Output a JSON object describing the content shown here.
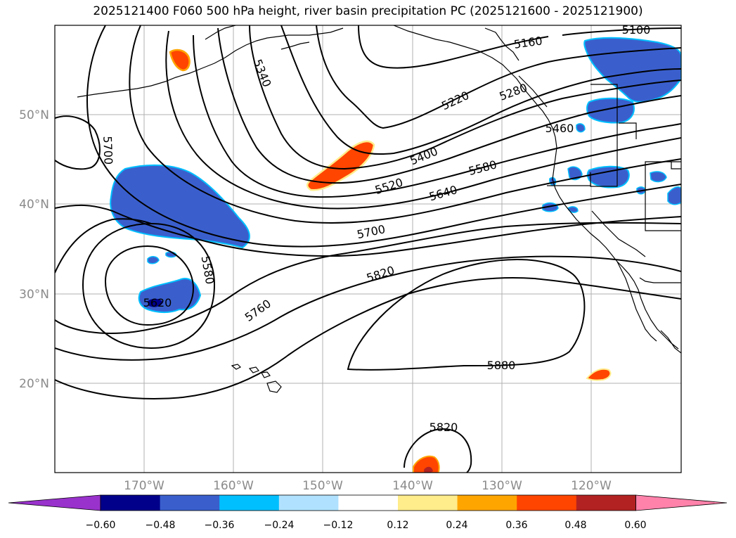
{
  "title": "2025121400 F060 500 hPa height, river basin precipitation PC (2025121600 - 2025121900)",
  "lat_labels": [
    "50°N",
    "40°N",
    "30°N",
    "20°N"
  ],
  "lon_labels": [
    "170°W",
    "160°W",
    "150°W",
    "140°W",
    "130°W",
    "120°W"
  ],
  "contour_labels": [
    "5100",
    "5160",
    "5220",
    "5280",
    "5340",
    "5400",
    "5460",
    "5520",
    "5580",
    "5640",
    "5700",
    "5760",
    "5820",
    "5880",
    "5580",
    "5700",
    "5620",
    "5820"
  ],
  "colorbar": {
    "ticks": [
      "−0.60",
      "−0.48",
      "−0.36",
      "−0.24",
      "−0.12",
      "0.12",
      "0.24",
      "0.36",
      "0.48",
      "0.60"
    ],
    "colors": [
      "#9932cc",
      "#00008b",
      "#3a5fcd",
      "#00bfff",
      "#b0e2ff",
      "#ffffff",
      "#ffec8b",
      "#ffa500",
      "#ff4500",
      "#b22222",
      "#ff82ab"
    ]
  },
  "fill_colors": {
    "negative": "#3a5fcd",
    "negative_edge": "#00bfff",
    "negative_strong": "#00008b",
    "positive": "#ff4500",
    "positive_edge": "#ffa500",
    "positive_strong": "#b22222"
  }
}
